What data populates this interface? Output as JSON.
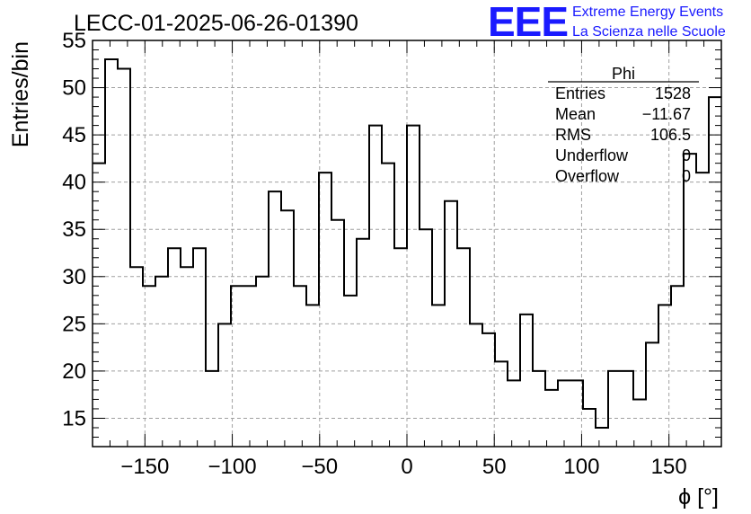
{
  "chart_data": {
    "type": "bar",
    "style": "step-histogram",
    "title": "LECC-01-2025-06-26-01390",
    "xlabel": "ϕ [°]",
    "ylabel": "Entries/bin",
    "xlim": [
      -180,
      180
    ],
    "ylim": [
      12,
      55
    ],
    "bin_width": 7.2,
    "x_ticks": [
      -150,
      -100,
      -50,
      0,
      50,
      100,
      150
    ],
    "x_tick_labels": [
      "−150",
      "−100",
      "−50",
      "0",
      "50",
      "100",
      "150"
    ],
    "y_ticks": [
      15,
      20,
      25,
      30,
      35,
      40,
      45,
      50,
      55
    ],
    "y_tick_labels": [
      "15",
      "20",
      "25",
      "30",
      "35",
      "40",
      "45",
      "50",
      "55"
    ],
    "grid": true,
    "series": [
      {
        "values": [
          42,
          53,
          52,
          31,
          29,
          30,
          33,
          31,
          33,
          20,
          25,
          29,
          29,
          30,
          39,
          37,
          29,
          27,
          41,
          36,
          28,
          34,
          46,
          42,
          33,
          46,
          35,
          27,
          38,
          33,
          25,
          24,
          21,
          19,
          26,
          20,
          18,
          19,
          19,
          16,
          14,
          20,
          20,
          17,
          23,
          27,
          29,
          43,
          41,
          49
        ],
        "color": "#000000"
      }
    ]
  },
  "stats_box": {
    "title": "Phi",
    "rows": [
      {
        "label": "Entries",
        "value": "1528"
      },
      {
        "label": "Mean",
        "value": "−11.67"
      },
      {
        "label": "RMS",
        "value": "106.5"
      },
      {
        "label": "Underflow",
        "value": "0"
      },
      {
        "label": "Overflow",
        "value": "0"
      }
    ]
  },
  "branding": {
    "logo": "EEE",
    "line1": "Extreme Energy Events",
    "line2": "La Scienza nelle Scuole",
    "color": "#1a1aff"
  }
}
